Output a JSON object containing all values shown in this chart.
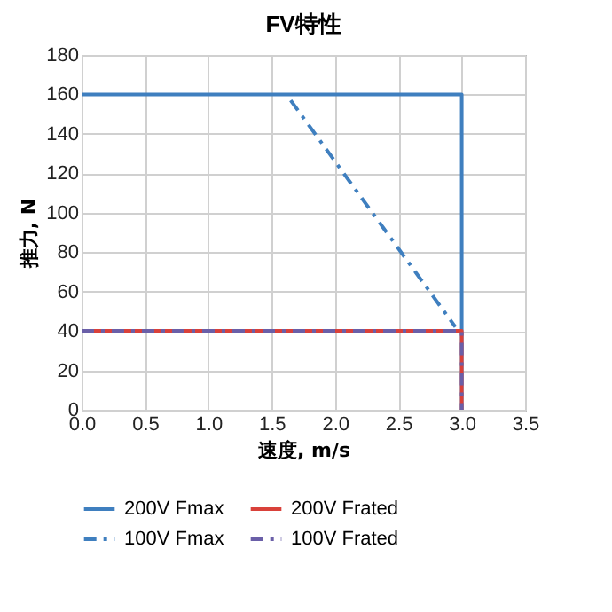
{
  "chart_data": {
    "type": "line",
    "title": "FV特性",
    "xlabel": "速度, m/s",
    "ylabel": "推力, N",
    "xlim": [
      0,
      3.5
    ],
    "xticks": [
      {
        "value": 0,
        "label": "0.0"
      },
      {
        "value": 0.5,
        "label": "0.5"
      },
      {
        "value": 1,
        "label": "1.0"
      },
      {
        "value": 1.5,
        "label": "1.5"
      },
      {
        "value": 2,
        "label": "2.0"
      },
      {
        "value": 2.5,
        "label": "2.5"
      },
      {
        "value": 3,
        "label": "3.0"
      },
      {
        "value": 3.5,
        "label": "3.5"
      }
    ],
    "ylim": [
      0,
      180
    ],
    "yticks": [
      0,
      20,
      40,
      60,
      80,
      100,
      120,
      140,
      160,
      180
    ],
    "grid": true,
    "legend": "bottom",
    "marker": "none",
    "series": [
      {
        "name": "200V Fmax",
        "color": "#3f7fbf",
        "line_style": "solid",
        "x": [
          0,
          3,
          3
        ],
        "values": [
          160,
          160,
          0
        ]
      },
      {
        "name": "200V Frated",
        "color": "#d9413a",
        "line_style": "solid",
        "x": [
          0,
          3,
          3
        ],
        "values": [
          40,
          40,
          0
        ]
      },
      {
        "name": "100V Fmax",
        "color": "#3f7fbf",
        "line_style": "dashed",
        "x": [
          1.65,
          2.95
        ],
        "values": [
          157,
          42
        ]
      },
      {
        "name": "100V Frated",
        "color": "#6a5fa8",
        "line_style": "dashed",
        "x": [
          0,
          3,
          3
        ],
        "values": [
          40,
          40,
          0
        ]
      }
    ]
  }
}
